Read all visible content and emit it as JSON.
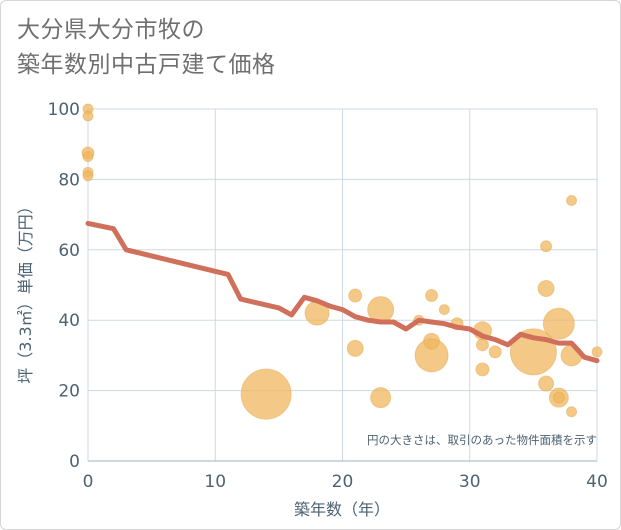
{
  "header": {
    "title_line1": "大分県大分市牧の",
    "title_line2": "築年数別中古戸建て価格"
  },
  "colors": {
    "bubble": "#f0b45a",
    "line": "#d0705a",
    "grid": "#cdd9e3",
    "axis": "#4d6272"
  },
  "chart_data": {
    "type": "scatter",
    "title": "大分県大分市牧の築年数別中古戸建て価格",
    "xlabel": "築年数（年）",
    "ylabel": "坪（3.3㎡）単価（万円）",
    "xlim": [
      0,
      40
    ],
    "ylim": [
      0,
      100
    ],
    "x_ticks": [
      0,
      10,
      20,
      30,
      40
    ],
    "y_ticks": [
      0,
      20,
      40,
      60,
      80,
      100
    ],
    "grid": true,
    "note": "円の大きさは、取引のあった物件面積を示す",
    "bubbles": [
      {
        "x": 0,
        "y": 100,
        "size": 1
      },
      {
        "x": 0,
        "y": 98,
        "size": 1
      },
      {
        "x": 0,
        "y": 87.5,
        "size": 1.2
      },
      {
        "x": 0,
        "y": 86.5,
        "size": 1
      },
      {
        "x": 0,
        "y": 82,
        "size": 1
      },
      {
        "x": 0,
        "y": 81,
        "size": 1
      },
      {
        "x": 14,
        "y": 19,
        "size": 5
      },
      {
        "x": 18,
        "y": 42,
        "size": 2.4
      },
      {
        "x": 21,
        "y": 47,
        "size": 1.3
      },
      {
        "x": 21,
        "y": 32,
        "size": 1.6
      },
      {
        "x": 23,
        "y": 43,
        "size": 2.6
      },
      {
        "x": 23,
        "y": 18,
        "size": 2
      },
      {
        "x": 26,
        "y": 40,
        "size": 1
      },
      {
        "x": 27,
        "y": 47,
        "size": 1.2
      },
      {
        "x": 27,
        "y": 34,
        "size": 1.6
      },
      {
        "x": 27,
        "y": 30,
        "size": 3.3
      },
      {
        "x": 28,
        "y": 43,
        "size": 1
      },
      {
        "x": 29,
        "y": 39,
        "size": 1.2
      },
      {
        "x": 31,
        "y": 37,
        "size": 1.8
      },
      {
        "x": 31,
        "y": 33,
        "size": 1.2
      },
      {
        "x": 31,
        "y": 26,
        "size": 1.3
      },
      {
        "x": 32,
        "y": 31,
        "size": 1.2
      },
      {
        "x": 35,
        "y": 31,
        "size": 4.6
      },
      {
        "x": 36,
        "y": 61,
        "size": 1.1
      },
      {
        "x": 36,
        "y": 49,
        "size": 1.6
      },
      {
        "x": 36,
        "y": 22,
        "size": 1.5
      },
      {
        "x": 37,
        "y": 39,
        "size": 3.1
      },
      {
        "x": 37,
        "y": 18,
        "size": 1.9
      },
      {
        "x": 37,
        "y": 18,
        "size": 1.1
      },
      {
        "x": 38,
        "y": 74,
        "size": 1
      },
      {
        "x": 38,
        "y": 30,
        "size": 2.1
      },
      {
        "x": 38,
        "y": 14,
        "size": 1
      },
      {
        "x": 40,
        "y": 31,
        "size": 1
      }
    ],
    "series": [
      {
        "x": [
          0,
          2,
          3,
          11,
          12,
          15,
          16,
          17,
          18,
          19,
          20,
          21,
          22,
          23,
          24,
          25,
          26,
          27,
          28,
          29,
          30,
          31,
          32,
          33,
          34,
          35,
          36,
          37,
          38,
          39,
          40
        ],
        "y": [
          67.5,
          66,
          60,
          53,
          46,
          43.5,
          41.5,
          46.5,
          45.5,
          44,
          43,
          41,
          40,
          39.5,
          39.5,
          37.5,
          40,
          39.5,
          39,
          38,
          37.5,
          35.5,
          34.5,
          33,
          36,
          35,
          34.5,
          33.5,
          33.5,
          29.5,
          28.5
        ]
      }
    ]
  }
}
